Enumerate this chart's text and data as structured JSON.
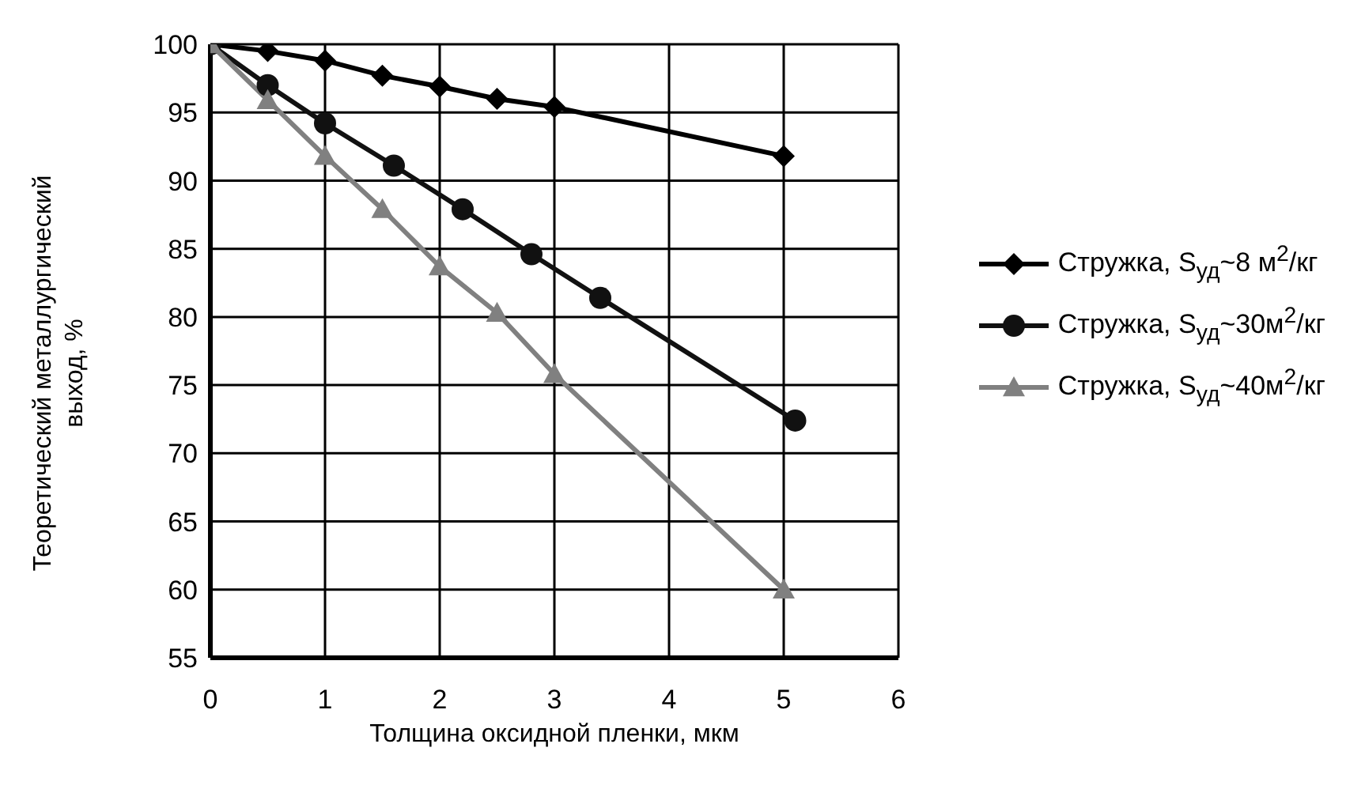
{
  "chart_data": {
    "type": "line",
    "xlabel": "Толщина оксидной пленки, мкм",
    "ylabel": "Теоретический металлургический выход, %",
    "xlim": [
      0,
      6
    ],
    "xticks": [
      0,
      1,
      2,
      3,
      4,
      5,
      6
    ],
    "ylim": [
      55,
      100
    ],
    "yticks": [
      55,
      60,
      65,
      70,
      75,
      80,
      85,
      90,
      95,
      100
    ],
    "grid": true,
    "legend": "right",
    "series": [
      {
        "name": "Стружка, S$_{уд}$~8 м$^{2}$/кг",
        "color": "#000000",
        "marker": "diamond",
        "x": [
          0,
          0.5,
          1,
          1.5,
          2,
          2.5,
          3,
          5
        ],
        "values": [
          100,
          99.5,
          98.8,
          97.7,
          96.9,
          96,
          95.4,
          91.8
        ]
      },
      {
        "name": "Стружка, S$_{уд}$~30м$^{2}$/кг",
        "color": "#111111",
        "marker": "circle",
        "x": [
          0,
          0.5,
          1,
          1.6,
          2.2,
          2.8,
          3.4,
          5.1
        ],
        "values": [
          100,
          97,
          94.2,
          91.1,
          87.9,
          84.6,
          81.4,
          72.4
        ]
      },
      {
        "name": "Стружка, S$_{уд}$~40м$^{2}$/кг",
        "color": "#808080",
        "marker": "triangle",
        "x": [
          0,
          0.5,
          1,
          1.5,
          2,
          2.5,
          3,
          5
        ],
        "values": [
          100,
          95.9,
          91.8,
          87.9,
          83.7,
          80.3,
          75.8,
          60
        ]
      }
    ]
  }
}
